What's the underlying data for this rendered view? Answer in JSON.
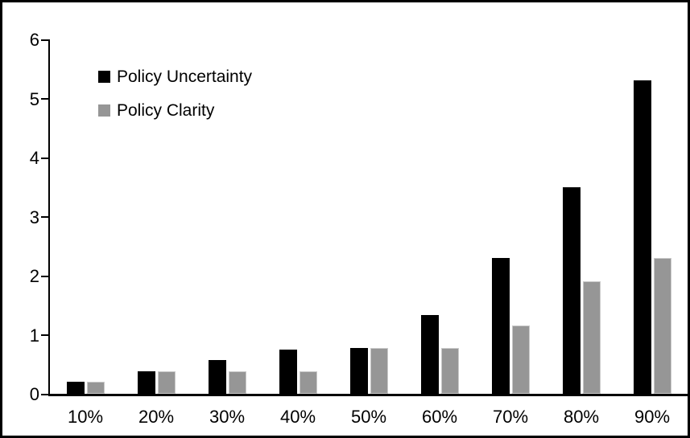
{
  "chart_data": {
    "type": "bar",
    "title": "",
    "xlabel": "",
    "ylabel": "",
    "categories": [
      "10%",
      "20%",
      "30%",
      "40%",
      "50%",
      "60%",
      "70%",
      "80%",
      "90%"
    ],
    "series": [
      {
        "name": "Policy Uncertainty",
        "color": "#000000",
        "values": [
          0.2,
          0.38,
          0.57,
          0.75,
          0.77,
          1.33,
          2.3,
          3.5,
          5.3
        ]
      },
      {
        "name": "Policy Clarity",
        "color": "#969696",
        "values": [
          0.2,
          0.38,
          0.38,
          0.38,
          0.77,
          0.77,
          1.15,
          1.9,
          2.3
        ]
      }
    ],
    "ylim": [
      0,
      6
    ],
    "yticks": [
      0,
      1,
      2,
      3,
      4,
      5,
      6
    ],
    "grid": false,
    "legend_position": "top-left",
    "colors": {
      "axis": "#000000",
      "figure_border": "#000000",
      "background": "#ffffff"
    }
  }
}
